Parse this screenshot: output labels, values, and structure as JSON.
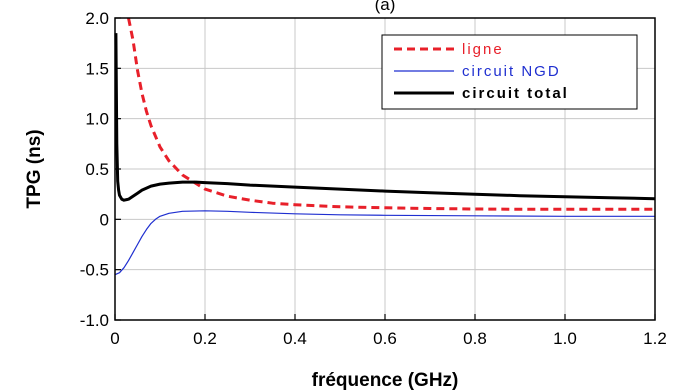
{
  "chart_data": {
    "type": "line",
    "title": "",
    "top_label": "(a)",
    "xlabel": "fréquence (GHz)",
    "ylabel": "TPG (ns)",
    "xlim": [
      0,
      1.2
    ],
    "ylim": [
      -1.0,
      2.0
    ],
    "x_ticks": [
      0,
      0.2,
      0.4,
      0.6,
      0.8,
      1.0,
      1.2
    ],
    "x_tick_labels": [
      "0",
      "0.2",
      "0.4",
      "0.6",
      "0.8",
      "1.0",
      "1.2"
    ],
    "y_ticks": [
      -1.0,
      -0.5,
      0,
      0.5,
      1.0,
      1.5,
      2.0
    ],
    "y_tick_labels": [
      "-1.0",
      "-0.5",
      "0",
      "0.5",
      "1.0",
      "1.5",
      "2.0"
    ],
    "grid": true,
    "legend_position": "top-right",
    "series": [
      {
        "name": "ligne",
        "color": "#e8202a",
        "style": "dashed",
        "x": [
          0.03,
          0.04,
          0.05,
          0.06,
          0.07,
          0.08,
          0.1,
          0.12,
          0.15,
          0.2,
          0.25,
          0.3,
          0.35,
          0.4,
          0.5,
          0.6,
          0.7,
          0.8,
          0.9,
          1.0,
          1.1,
          1.2
        ],
        "values": [
          2.0,
          1.78,
          1.48,
          1.25,
          1.07,
          0.93,
          0.72,
          0.58,
          0.44,
          0.3,
          0.23,
          0.19,
          0.16,
          0.145,
          0.125,
          0.115,
          0.108,
          0.103,
          0.1,
          0.1,
          0.1,
          0.1
        ]
      },
      {
        "name": "circuit NGD",
        "color": "#1f2fd0",
        "style": "solid",
        "x": [
          0,
          0.01,
          0.02,
          0.03,
          0.04,
          0.05,
          0.06,
          0.07,
          0.08,
          0.09,
          0.1,
          0.12,
          0.15,
          0.2,
          0.25,
          0.3,
          0.4,
          0.5,
          0.6,
          0.8,
          1.0,
          1.2
        ],
        "values": [
          -0.55,
          -0.53,
          -0.48,
          -0.41,
          -0.33,
          -0.25,
          -0.17,
          -0.1,
          -0.04,
          0.0,
          0.03,
          0.06,
          0.08,
          0.085,
          0.08,
          0.07,
          0.055,
          0.045,
          0.04,
          0.035,
          0.03,
          0.03
        ]
      },
      {
        "name": "circuit total",
        "color": "#000000",
        "style": "solid",
        "x": [
          0.002,
          0.004,
          0.006,
          0.008,
          0.01,
          0.015,
          0.02,
          0.03,
          0.04,
          0.05,
          0.06,
          0.08,
          0.1,
          0.12,
          0.15,
          0.18,
          0.2,
          0.25,
          0.3,
          0.4,
          0.5,
          0.6,
          0.7,
          0.8,
          0.9,
          1.0,
          1.1,
          1.2
        ],
        "values": [
          1.85,
          0.75,
          0.38,
          0.29,
          0.24,
          0.2,
          0.19,
          0.2,
          0.23,
          0.26,
          0.29,
          0.33,
          0.35,
          0.36,
          0.37,
          0.37,
          0.365,
          0.355,
          0.34,
          0.32,
          0.3,
          0.28,
          0.265,
          0.25,
          0.235,
          0.225,
          0.215,
          0.205
        ]
      }
    ]
  }
}
